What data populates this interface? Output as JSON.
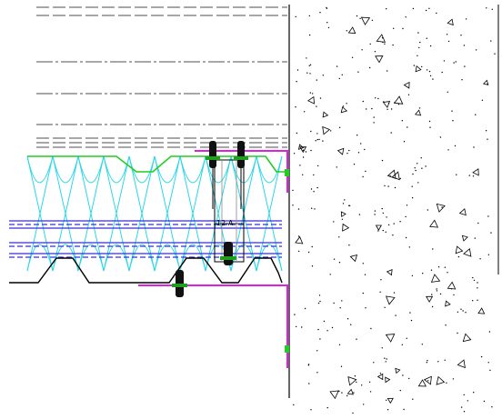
{
  "drawing": {
    "dimension_label": "12-A",
    "colors": {
      "line": "#7a7a7a",
      "outline": "#000000",
      "insulation": "#29d8e8",
      "membrane": "#3a2fd8",
      "top_sheet": "#22cc22",
      "flashing": "#e020e0",
      "fastener_fill": "#111111",
      "fastener_washer": "#1ea01e",
      "concrete_mark": "#000000"
    },
    "icons": {
      "fastener": "screw-icon",
      "concrete": "aggregate-hatch"
    }
  }
}
